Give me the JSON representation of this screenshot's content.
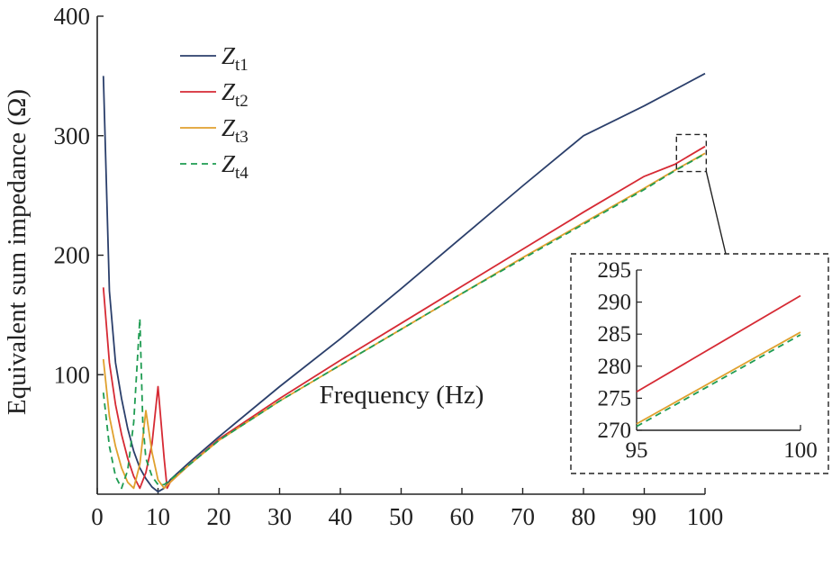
{
  "chart_data": {
    "type": "line",
    "xlabel": "Frequency (Hz)",
    "ylabel": "Equivalent sum impedance (Ω)",
    "xlim": [
      0,
      100
    ],
    "ylim": [
      0,
      400
    ],
    "xticks": [
      "0",
      "10",
      "20",
      "30",
      "40",
      "50",
      "60",
      "70",
      "80",
      "90",
      "100"
    ],
    "yticks": [
      "100",
      "200",
      "300",
      "400"
    ],
    "legend_position": "top-left",
    "grid": false,
    "series": [
      {
        "name": "Z_t1",
        "base": "Z",
        "sub": "t1",
        "color": "#2b3f6b",
        "dash": false,
        "points": [
          [
            1,
            350
          ],
          [
            2,
            170
          ],
          [
            3,
            110
          ],
          [
            4,
            80
          ],
          [
            5,
            55
          ],
          [
            6,
            36
          ],
          [
            7,
            22
          ],
          [
            8,
            13
          ],
          [
            9,
            6
          ],
          [
            10,
            2
          ],
          [
            11,
            5
          ],
          [
            12,
            12
          ],
          [
            15,
            26
          ],
          [
            20,
            48
          ],
          [
            30,
            90
          ],
          [
            40,
            130
          ],
          [
            50,
            172
          ],
          [
            60,
            215
          ],
          [
            70,
            258
          ],
          [
            80,
            300
          ],
          [
            90,
            325
          ],
          [
            100,
            352
          ]
        ]
      },
      {
        "name": "Z_t2",
        "base": "Z",
        "sub": "t2",
        "color": "#d62a34",
        "dash": false,
        "points": [
          [
            1,
            173
          ],
          [
            2,
            110
          ],
          [
            3,
            75
          ],
          [
            4,
            50
          ],
          [
            5,
            30
          ],
          [
            6,
            15
          ],
          [
            7,
            5
          ],
          [
            8,
            18
          ],
          [
            9,
            42
          ],
          [
            10,
            90
          ],
          [
            11,
            30
          ],
          [
            11.5,
            5
          ],
          [
            12,
            10
          ],
          [
            15,
            24
          ],
          [
            20,
            46
          ],
          [
            30,
            80
          ],
          [
            40,
            112
          ],
          [
            50,
            143
          ],
          [
            60,
            174
          ],
          [
            70,
            205
          ],
          [
            80,
            236
          ],
          [
            90,
            266
          ],
          [
            95,
            276
          ],
          [
            100,
            291
          ]
        ]
      },
      {
        "name": "Z_t3",
        "base": "Z",
        "sub": "t3",
        "color": "#e0a12e",
        "dash": false,
        "points": [
          [
            1,
            113
          ],
          [
            2,
            65
          ],
          [
            3,
            40
          ],
          [
            4,
            22
          ],
          [
            5,
            10
          ],
          [
            6,
            5
          ],
          [
            7,
            25
          ],
          [
            8,
            70
          ],
          [
            9,
            35
          ],
          [
            10,
            12
          ],
          [
            11,
            5
          ],
          [
            12,
            10
          ],
          [
            15,
            24
          ],
          [
            20,
            45
          ],
          [
            30,
            78
          ],
          [
            40,
            108
          ],
          [
            50,
            138
          ],
          [
            60,
            168
          ],
          [
            70,
            198
          ],
          [
            80,
            227
          ],
          [
            90,
            256
          ],
          [
            95,
            271
          ],
          [
            100,
            285.3
          ]
        ]
      },
      {
        "name": "Z_t4",
        "base": "Z",
        "sub": "t4",
        "color": "#1f9c52",
        "dash": true,
        "points": [
          [
            1,
            85
          ],
          [
            2,
            40
          ],
          [
            3,
            15
          ],
          [
            4,
            5
          ],
          [
            5,
            20
          ],
          [
            6,
            60
          ],
          [
            7,
            147
          ],
          [
            7.5,
            60
          ],
          [
            8,
            30
          ],
          [
            9,
            15
          ],
          [
            10,
            8
          ],
          [
            11,
            8
          ],
          [
            12,
            12
          ],
          [
            15,
            24
          ],
          [
            20,
            45
          ],
          [
            30,
            78
          ],
          [
            40,
            108
          ],
          [
            50,
            138
          ],
          [
            60,
            168
          ],
          [
            70,
            197
          ],
          [
            80,
            226
          ],
          [
            90,
            255
          ],
          [
            95,
            270.6
          ],
          [
            100,
            284.9
          ]
        ]
      }
    ],
    "inset": {
      "xlim": [
        95,
        100
      ],
      "ylim": [
        270,
        295
      ],
      "xticks": [
        "95",
        "100"
      ],
      "yticks": [
        "270",
        "275",
        "280",
        "285",
        "290",
        "295"
      ]
    }
  }
}
